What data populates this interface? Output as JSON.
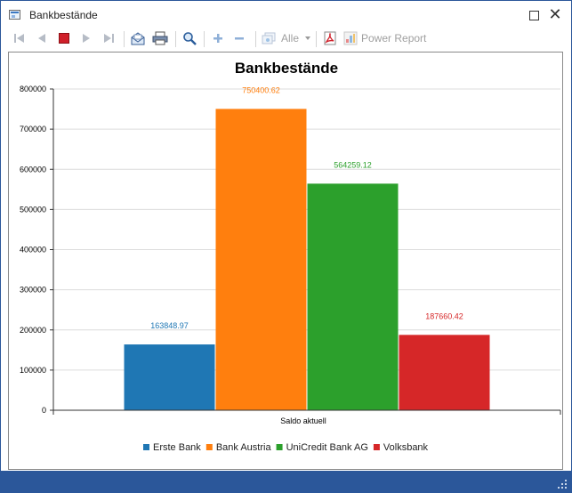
{
  "window": {
    "title": "Bankbestände",
    "maximize_glyph": "□",
    "close_glyph": "✕"
  },
  "toolbar": {
    "items": [
      {
        "name": "first-page",
        "icon": "first-page-icon"
      },
      {
        "name": "prev-page",
        "icon": "prev-page-icon"
      },
      {
        "name": "stop",
        "icon": "stop-icon"
      },
      {
        "name": "next-page",
        "icon": "next-page-icon"
      },
      {
        "name": "last-page",
        "icon": "last-page-icon"
      },
      {
        "name": "email",
        "icon": "email-icon"
      },
      {
        "name": "print",
        "icon": "print-icon"
      },
      {
        "name": "zoom",
        "icon": "magnifier-icon"
      },
      {
        "name": "zoom-in",
        "icon": "plus-icon"
      },
      {
        "name": "zoom-out",
        "icon": "minus-icon"
      }
    ],
    "pages_dropdown_label": "Alle",
    "pdf_icon": "pdf-icon",
    "power_report_label": "Power Report"
  },
  "colors": {
    "accent": "#2b579a",
    "stop_red": "#d0202a",
    "erste": "#1f77b4",
    "austria": "#ff7f0e",
    "unicredit": "#2ca02c",
    "volksbank": "#d62728"
  },
  "chart_data": {
    "type": "bar",
    "title": "Bankbestände",
    "categories": [
      "Saldo aktuell"
    ],
    "series": [
      {
        "name": "Erste Bank",
        "values": [
          163848.97
        ],
        "label": "163848.97",
        "color": "#1f77b4"
      },
      {
        "name": "Bank Austria",
        "values": [
          750400.62
        ],
        "label": "750400.62",
        "color": "#ff7f0e"
      },
      {
        "name": "UniCredit Bank AG",
        "values": [
          564259.12
        ],
        "label": "564259.12",
        "color": "#2ca02c"
      },
      {
        "name": "Volksbank",
        "values": [
          187660.42
        ],
        "label": "187660.42",
        "color": "#d62728"
      }
    ],
    "ylim": [
      0,
      800000
    ],
    "yticks": [
      "0",
      "100000",
      "200000",
      "300000",
      "400000",
      "500000",
      "600000",
      "700000",
      "800000"
    ],
    "grid": true,
    "legend": "bottom"
  }
}
